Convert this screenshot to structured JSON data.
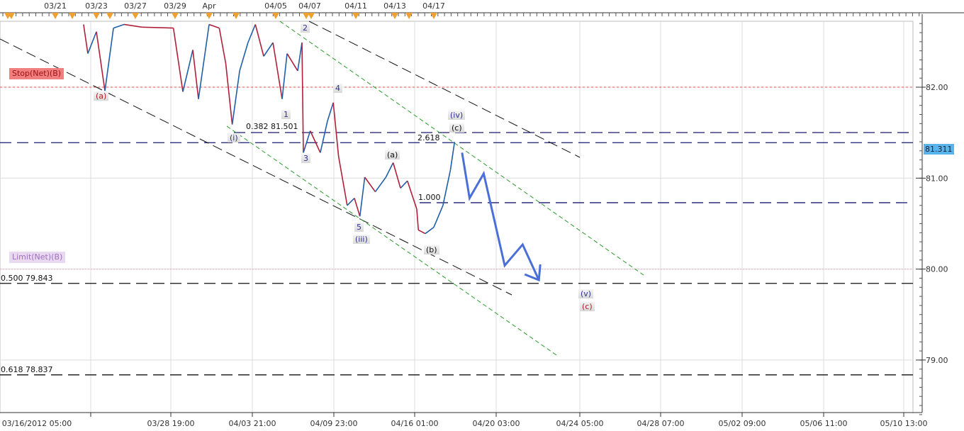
{
  "chart_data": {
    "type": "line",
    "title": "",
    "xlabel": "",
    "ylabel": "",
    "ylim": [
      78.35,
      82.72
    ],
    "grid": true,
    "y_ticks": [
      "82.00",
      "81.00",
      "80.00",
      "79.00"
    ],
    "y_tick_values": [
      82,
      81,
      80,
      79
    ],
    "top_ticks": [
      "03/21",
      "03/23",
      "03/27",
      "03/29",
      "Apr",
      "04/05",
      "04/07",
      "04/11",
      "04/13",
      "04/17"
    ],
    "bottom_ticks": [
      "03/16/2012 05:00",
      "03/28 19:00",
      "04/03 21:00",
      "04/09 23:00",
      "04/16 01:00",
      "04/20 03:00",
      "04/24 05:00",
      "04/28 07:00",
      "05/02 09:00",
      "05/06 11:00",
      "05/10 13:00"
    ],
    "current_price": "81.311",
    "series": [
      {
        "values": [
          [
            "03/22 09:00",
            82.69
          ],
          [
            "03/22 14:00",
            82.37
          ],
          [
            "03/23 00:00",
            82.61
          ],
          [
            "03/23 21:00",
            81.96
          ],
          [
            "03/24 18:00",
            82.65
          ],
          [
            "03/25 20:00",
            82.69
          ],
          [
            "03/27 08:00",
            82.66
          ],
          [
            "03/28 22:00",
            82.65
          ],
          [
            "03/29 22:00",
            81.95
          ],
          [
            "03/31 02:00",
            82.41
          ],
          [
            "03/31 18:00",
            81.87
          ],
          [
            "04/02 00:00",
            82.69
          ],
          [
            "04/02 11:00",
            82.65
          ],
          [
            "04/02 18:00",
            82.26
          ],
          [
            "04/03 01:00",
            81.59
          ],
          [
            "04/03 09:00",
            82.18
          ],
          [
            "04/03 18:00",
            82.49
          ],
          [
            "04/04 02:00",
            82.69
          ],
          [
            "04/04 11:00",
            82.34
          ],
          [
            "04/04 21:00",
            82.49
          ],
          [
            "04/05 09:00",
            81.87
          ],
          [
            "04/05 16:00",
            82.37
          ],
          [
            "04/06 07:00",
            82.18
          ],
          [
            "04/06 13:00",
            82.49
          ],
          [
            "04/06 15:00",
            81.28
          ],
          [
            "04/07 01:00",
            81.52
          ],
          [
            "04/07 22:00",
            81.28
          ],
          [
            "04/08 13:00",
            81.63
          ],
          [
            "04/09 01:00",
            81.83
          ],
          [
            "04/09 12:00",
            81.24
          ],
          [
            "04/10 06:00",
            80.7
          ],
          [
            "04/10 21:00",
            80.78
          ],
          [
            "04/11 05:00",
            80.58
          ],
          [
            "04/11 11:00",
            81.01
          ],
          [
            "04/12 00:00",
            80.85
          ],
          [
            "04/12 13:00",
            81.01
          ],
          [
            "04/12 22:00",
            81.17
          ],
          [
            "04/13 14:00",
            80.89
          ],
          [
            "04/14 07:00",
            80.97
          ],
          [
            "04/15 06:00",
            80.66
          ],
          [
            "04/15 10:00",
            80.43
          ],
          [
            "04/16 03:00",
            80.39
          ],
          [
            "04/17 00:00",
            80.46
          ],
          [
            "04/17 11:00",
            80.7
          ],
          [
            "04/17 20:00",
            81.09
          ],
          [
            "04/18 01:00",
            81.4
          ]
        ]
      }
    ],
    "projection": {
      "color": "#4a6fd8",
      "values": [
        [
          "04/18 10:00",
          81.28
        ],
        [
          "04/18 19:00",
          80.78
        ],
        [
          "04/19 12:00",
          81.05
        ],
        [
          "04/20 13:00",
          80.04
        ],
        [
          "04/21 10:00",
          80.27
        ],
        [
          "04/22 05:00",
          79.88
        ]
      ]
    },
    "levels": [
      {
        "label": "0.382 81.501",
        "price": 81.501
      },
      {
        "label": "2.618",
        "price": 81.39
      },
      {
        "label": "1.000",
        "price": 80.73
      },
      {
        "label": "0.500 79.843",
        "price": 79.843
      },
      {
        "label": "0.618 78.837",
        "price": 78.837
      }
    ],
    "orders": [
      {
        "label": "Stop(Net)(B)",
        "price": 82.0,
        "color": "#f08080"
      },
      {
        "label": "Limit(Net)(B)",
        "price": 80.0,
        "color": "#d8b8e8"
      }
    ],
    "wave_labels": [
      "(a)",
      "(i)",
      "1",
      "2",
      "3",
      "4",
      "5",
      "(iii)",
      "(a)",
      "(b)",
      "(c)",
      "(iv)",
      "(v)",
      "(c)"
    ],
    "colors": {
      "up": "#1f5fa8",
      "down": "#b0203a",
      "grid": "#dcdcdc",
      "price_tag": "#5ab4ec"
    }
  }
}
